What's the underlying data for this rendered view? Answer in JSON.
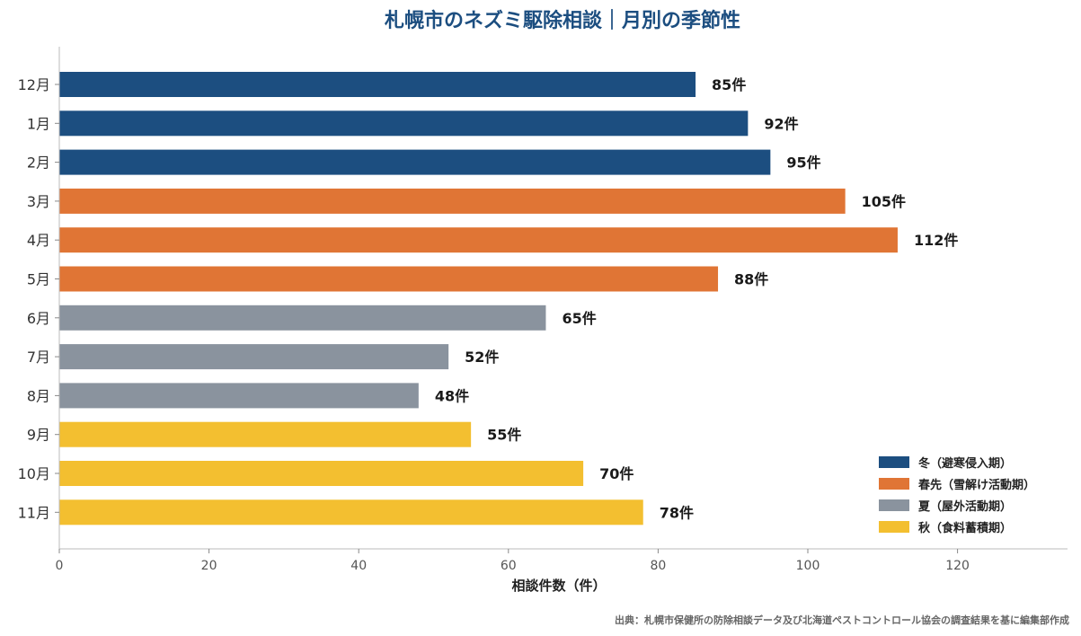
{
  "chart_data": {
    "type": "bar",
    "orientation": "horizontal",
    "title": "札幌市のネズミ駆除相談｜月別の季節性",
    "xlabel": "相談件数（件）",
    "ylabel": "",
    "xlim": [
      0,
      135
    ],
    "xticks": [
      "0",
      "20",
      "40",
      "60",
      "80",
      "100",
      "120"
    ],
    "grid": false,
    "legend_position": "bottom-right",
    "unit_suffix": "件",
    "categories": [
      "12月",
      "1月",
      "2月",
      "3月",
      "4月",
      "5月",
      "6月",
      "7月",
      "8月",
      "9月",
      "10月",
      "11月"
    ],
    "values": [
      85,
      92,
      95,
      105,
      112,
      88,
      65,
      52,
      48,
      55,
      70,
      78
    ],
    "data_labels": [
      "85件",
      "92件",
      "95件",
      "105件",
      "112件",
      "88件",
      "65件",
      "52件",
      "48件",
      "55件",
      "70件",
      "78件"
    ],
    "season_of_bar": [
      0,
      0,
      0,
      1,
      1,
      1,
      2,
      2,
      2,
      3,
      3,
      3
    ],
    "seasons": [
      {
        "name": "冬（避寒侵入期）",
        "color": "#1c4e80"
      },
      {
        "name": "春先（雪解け活動期）",
        "color": "#e07535"
      },
      {
        "name": "夏（屋外活動期）",
        "color": "#8a939e"
      },
      {
        "name": "秋（食料蓄積期）",
        "color": "#f3bf30"
      }
    ],
    "title_color": "#1c4e80",
    "source": "出典：札幌市保健所の防除相談データ及び北海道ペストコントロール協会の調査結果を基に編集部作成"
  }
}
